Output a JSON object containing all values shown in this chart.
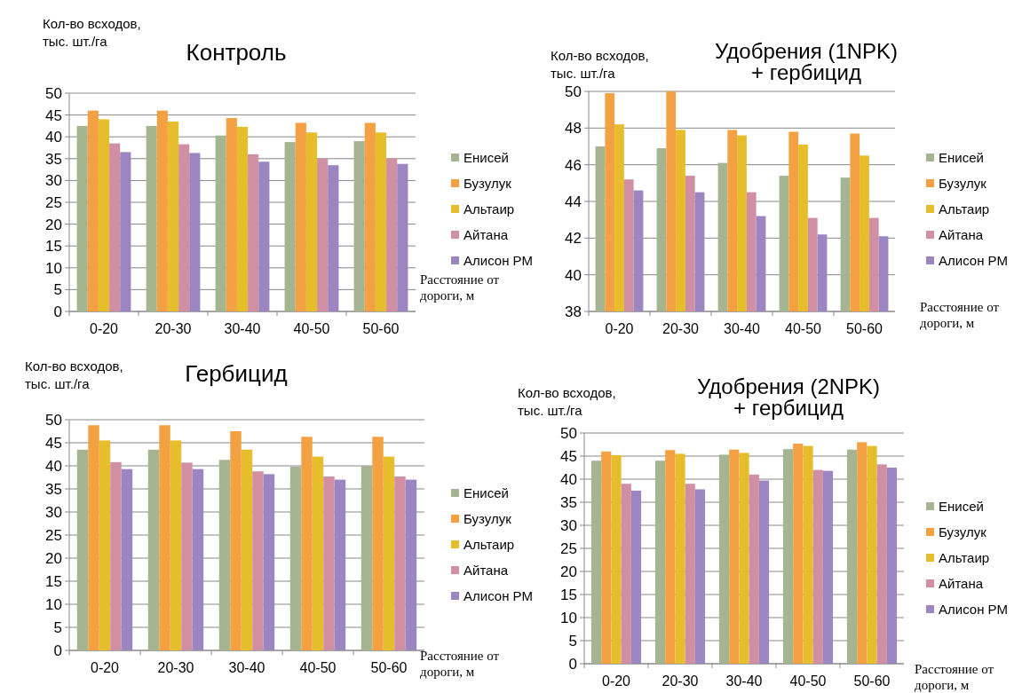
{
  "chart_data": [
    {
      "type": "bar",
      "title": "Контроль",
      "ylabel": "Кол-во всходов,\nтыс. шт./га",
      "xlabel": "Расстояние от\nдороги, м",
      "categories": [
        "0-20",
        "20-30",
        "30-40",
        "40-50",
        "50-60"
      ],
      "ylim": [
        0,
        50
      ],
      "yticks": [
        0,
        5,
        10,
        15,
        20,
        25,
        30,
        35,
        40,
        45,
        50
      ],
      "grid": "y",
      "legend": "right",
      "series": [
        {
          "name": "Енисей",
          "color": "#a5b592",
          "values": [
            42.5,
            42.5,
            40.3,
            38.8,
            39
          ]
        },
        {
          "name": "Бузулук",
          "color": "#f3a143",
          "values": [
            46,
            46,
            44.3,
            43.2,
            43.2
          ]
        },
        {
          "name": "Альтаир",
          "color": "#e6bd2a",
          "values": [
            44,
            43.5,
            42.3,
            41,
            41
          ]
        },
        {
          "name": "Айтана",
          "color": "#d18fa4",
          "values": [
            38.5,
            38.3,
            36,
            35,
            35
          ]
        },
        {
          "name": "Алисон РМ",
          "color": "#9b86c1",
          "values": [
            36.5,
            36.3,
            34.3,
            33.5,
            33.8
          ]
        }
      ]
    },
    {
      "type": "bar",
      "title": "Удобрения  (1NPK)\n+ гербицид",
      "ylabel": "Кол-во всходов,\nтыс. шт./га",
      "xlabel": "Расстояние от\nдороги, м",
      "categories": [
        "0-20",
        "20-30",
        "30-40",
        "40-50",
        "50-60"
      ],
      "ylim": [
        38,
        50
      ],
      "yticks": [
        38,
        40,
        42,
        44,
        46,
        48,
        50
      ],
      "grid": "y",
      "legend": "right",
      "series": [
        {
          "name": "Енисей",
          "color": "#a5b592",
          "values": [
            47,
            46.9,
            46.1,
            45.4,
            45.3
          ]
        },
        {
          "name": "Бузулук",
          "color": "#f3a143",
          "values": [
            49.9,
            50,
            47.9,
            47.8,
            47.7
          ]
        },
        {
          "name": "Альтаир",
          "color": "#e6bd2a",
          "values": [
            48.2,
            47.9,
            47.6,
            47.1,
            46.5
          ]
        },
        {
          "name": "Айтана",
          "color": "#d18fa4",
          "values": [
            45.2,
            45.4,
            44.5,
            43.1,
            43.1
          ]
        },
        {
          "name": "Алисон РМ",
          "color": "#9b86c1",
          "values": [
            44.6,
            44.5,
            43.2,
            42.2,
            42.1
          ]
        }
      ]
    },
    {
      "type": "bar",
      "title": "Гербицид",
      "ylabel": "Кол-во всходов,\nтыс. шт./га",
      "xlabel": "Расстояние от\nдороги, м",
      "categories": [
        "0-20",
        "20-30",
        "30-40",
        "40-50",
        "50-60"
      ],
      "ylim": [
        0,
        50
      ],
      "yticks": [
        0,
        5,
        10,
        15,
        20,
        25,
        30,
        35,
        40,
        45,
        50
      ],
      "grid": "y",
      "legend": "right",
      "series": [
        {
          "name": "Енисей",
          "color": "#a5b592",
          "values": [
            43.5,
            43.5,
            41.3,
            39.8,
            40
          ]
        },
        {
          "name": "Бузулук",
          "color": "#f3a143",
          "values": [
            48.8,
            48.8,
            47.5,
            46.3,
            46.3
          ]
        },
        {
          "name": "Альтаир",
          "color": "#e6bd2a",
          "values": [
            45.5,
            45.5,
            43.5,
            42,
            42
          ]
        },
        {
          "name": "Айтана",
          "color": "#d18fa4",
          "values": [
            40.8,
            40.7,
            38.8,
            37.7,
            37.7
          ]
        },
        {
          "name": "Алисон РМ",
          "color": "#9b86c1",
          "values": [
            39.3,
            39.3,
            38.2,
            37,
            37
          ]
        }
      ]
    },
    {
      "type": "bar",
      "title": "Удобрения (2NPK)\n+ гербицид",
      "ylabel": "Кол-во всходов,\nтыс. шт./га",
      "xlabel": "Расстояние от\nдороги, м",
      "categories": [
        "0-20",
        "20-30",
        "30-40",
        "40-50",
        "50-60"
      ],
      "ylim": [
        0,
        50
      ],
      "yticks": [
        0,
        5,
        10,
        15,
        20,
        25,
        30,
        35,
        40,
        45,
        50
      ],
      "grid": "y",
      "legend": "right",
      "series": [
        {
          "name": "Енисей",
          "color": "#a5b592",
          "values": [
            44,
            44,
            45.3,
            46.5,
            46.4
          ]
        },
        {
          "name": "Бузулук",
          "color": "#f3a143",
          "values": [
            46,
            46.3,
            46.4,
            47.7,
            48
          ]
        },
        {
          "name": "Альтаир",
          "color": "#e6bd2a",
          "values": [
            45.2,
            45.5,
            45.7,
            47.2,
            47.2
          ]
        },
        {
          "name": "Айтана",
          "color": "#d18fa4",
          "values": [
            39,
            39,
            41,
            42,
            43.2
          ]
        },
        {
          "name": "Алисон РМ",
          "color": "#9b86c1",
          "values": [
            37.5,
            37.8,
            39.7,
            41.8,
            42.5
          ]
        }
      ]
    }
  ]
}
